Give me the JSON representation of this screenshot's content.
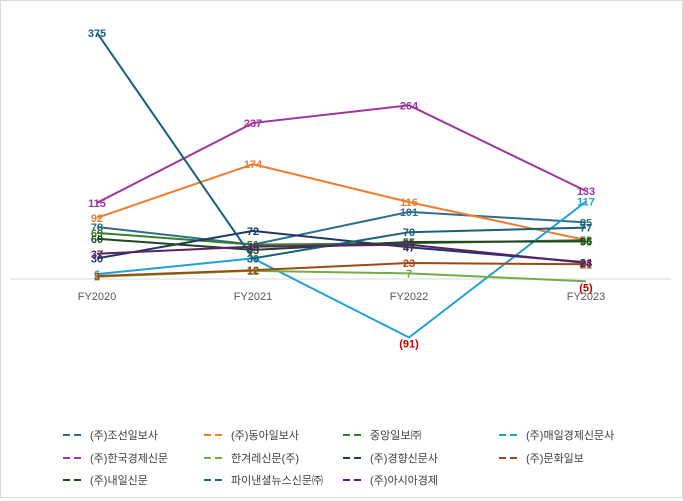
{
  "chart_data": {
    "type": "line",
    "categories": [
      "FY2020",
      "FY2021",
      "FY2022",
      "FY2023"
    ],
    "ylim": [
      -100,
      400
    ],
    "grid": false,
    "legend_position": "bottom",
    "series": [
      {
        "name": "(주)조선일보사",
        "color": "#2e6e8e",
        "values": [
          78,
          51,
          101,
          85
        ],
        "labels": [
          "78",
          "51",
          "101",
          "85"
        ]
      },
      {
        "name": "(주)동아일보사",
        "color": "#ed7d31",
        "values": [
          92,
          174,
          116,
          58
        ],
        "labels": [
          "92",
          "174",
          "116",
          "58"
        ]
      },
      {
        "name": "중앙일보㈜",
        "color": "#3a7d2c",
        "values": [
          69,
          51,
          53,
          58
        ],
        "labels": [
          "69",
          "51",
          "53",
          "58"
        ]
      },
      {
        "name": "(주)매일경제신문사",
        "color": "#1f9fd8",
        "values": [
          6,
          30,
          -91,
          117
        ],
        "labels": [
          "6",
          "30",
          "(91)",
          "117"
        ]
      },
      {
        "name": "(주)한국경제신문",
        "color": "#a0359d",
        "values": [
          115,
          237,
          264,
          133
        ],
        "labels": [
          "115",
          "237",
          "264",
          "133"
        ]
      },
      {
        "name": "한겨레신문(주)",
        "color": "#70ad47",
        "values": [
          2,
          11,
          7,
          -5
        ],
        "labels": [
          "2",
          "11",
          "7",
          "(5)"
        ]
      },
      {
        "name": "(주)경향신문사",
        "color": "#1f3864",
        "values": [
          30,
          72,
          47,
          24
        ],
        "labels": [
          "30",
          "72",
          "47",
          "24"
        ]
      },
      {
        "name": "(주)문화일보",
        "color": "#9c4a13",
        "values": [
          3,
          12,
          23,
          21
        ],
        "labels": [
          "3",
          "12",
          "23",
          "21"
        ]
      },
      {
        "name": "(주)내일신문",
        "color": "#1e4620",
        "values": [
          60,
          43,
          55,
          56
        ],
        "labels": [
          "60",
          "43",
          "55",
          "56"
        ]
      },
      {
        "name": "파이낸셜뉴스신문㈜",
        "color": "#19607a",
        "values": [
          375,
          30,
          70,
          77
        ],
        "labels": [
          "375",
          "30",
          "70",
          "77"
        ]
      },
      {
        "name": "(주)아시아경제",
        "color": "#5b2167",
        "values": [
          37,
          48,
          51,
          23
        ],
        "labels": [
          "37",
          "48",
          "51",
          "23"
        ]
      }
    ],
    "negative_label_color": "#c00000"
  }
}
